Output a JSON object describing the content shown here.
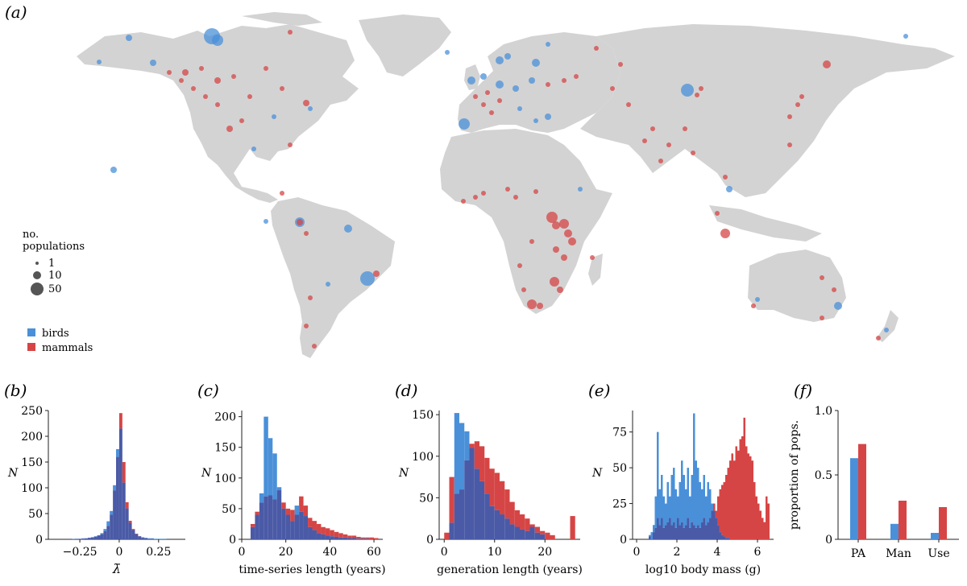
{
  "colors": {
    "birds": "#4a90d9",
    "mammals": "#d64545",
    "overlap": "#4a5aa6",
    "land": "#d3d3d3"
  },
  "map_panel": {
    "label": "(a)",
    "legend_size_title": "no.\npopulations",
    "legend_size_title_line1": "no.",
    "legend_size_title_line2": "populations",
    "legend_sizes": [
      "1",
      "10",
      "50"
    ],
    "legend_groups": [
      "birds",
      "mammals"
    ]
  },
  "chart_data": [
    {
      "panel": "(b)",
      "type": "bar",
      "xlabel": "λ̄",
      "ylabel": "N",
      "xlim": [
        -0.45,
        0.42
      ],
      "ylim": [
        0,
        250
      ],
      "xticks": [
        "-0.25",
        "0",
        "0.25"
      ],
      "xtick_values": [
        -0.25,
        0,
        0.25
      ],
      "yticks": [
        "0",
        "50",
        "100",
        "150",
        "200",
        "250"
      ],
      "ytick_values": [
        0,
        50,
        100,
        150,
        200,
        250
      ],
      "bin_width": 0.02,
      "bin_starts": [
        -0.3,
        -0.28,
        -0.26,
        -0.24,
        -0.22,
        -0.2,
        -0.18,
        -0.16,
        -0.14,
        -0.12,
        -0.1,
        -0.08,
        -0.06,
        -0.04,
        -0.02,
        0,
        0.02,
        0.04,
        0.06,
        0.08,
        0.1,
        0.12,
        0.14,
        0.16,
        0.18,
        0.2,
        0.22,
        0.24,
        0.26,
        0.28
      ],
      "series": [
        {
          "name": "birds",
          "values": [
            1,
            1,
            1,
            2,
            2,
            3,
            4,
            6,
            8,
            12,
            20,
            35,
            55,
            105,
            175,
            215,
            110,
            60,
            32,
            18,
            10,
            6,
            4,
            3,
            2,
            2,
            1,
            1,
            1,
            1
          ]
        },
        {
          "name": "mammals",
          "values": [
            0,
            1,
            1,
            1,
            2,
            3,
            4,
            5,
            7,
            10,
            16,
            26,
            48,
            95,
            160,
            245,
            150,
            72,
            36,
            20,
            11,
            6,
            3,
            2,
            1,
            1,
            0,
            0,
            0,
            0
          ]
        }
      ]
    },
    {
      "panel": "(c)",
      "type": "bar",
      "xlabel": "time-series length (years)",
      "ylabel": "N",
      "xlim": [
        0,
        64
      ],
      "ylim": [
        0,
        210
      ],
      "xticks": [
        "0",
        "20",
        "40",
        "60"
      ],
      "xtick_values": [
        0,
        20,
        40,
        60
      ],
      "yticks": [
        "0",
        "50",
        "100",
        "150",
        "200"
      ],
      "ytick_values": [
        0,
        50,
        100,
        150,
        200
      ],
      "bin_width": 2,
      "bin_starts": [
        4,
        6,
        8,
        10,
        12,
        14,
        16,
        18,
        20,
        22,
        24,
        26,
        28,
        30,
        32,
        34,
        36,
        38,
        40,
        42,
        44,
        46,
        48,
        50,
        52,
        54,
        56,
        58,
        60
      ],
      "series": [
        {
          "name": "birds",
          "values": [
            20,
            40,
            75,
            200,
            165,
            140,
            85,
            50,
            40,
            30,
            55,
            45,
            38,
            20,
            15,
            10,
            8,
            6,
            5,
            4,
            3,
            3,
            2,
            2,
            1,
            1,
            1,
            0,
            0
          ]
        },
        {
          "name": "mammals",
          "values": [
            25,
            45,
            60,
            70,
            72,
            65,
            80,
            60,
            50,
            48,
            40,
            70,
            55,
            35,
            30,
            25,
            20,
            18,
            15,
            12,
            10,
            8,
            6,
            6,
            4,
            3,
            3,
            3,
            2
          ]
        }
      ]
    },
    {
      "panel": "(d)",
      "type": "bar",
      "xlabel": "generation length (years)",
      "ylabel": "N",
      "xlim": [
        -1,
        27
      ],
      "ylim": [
        0,
        155
      ],
      "xticks": [
        "0",
        "10",
        "20"
      ],
      "xtick_values": [
        0,
        10,
        20
      ],
      "yticks": [
        "0",
        "50",
        "100",
        "150"
      ],
      "ytick_values": [
        0,
        50,
        100,
        150
      ],
      "bin_width": 1,
      "bin_starts": [
        0,
        1,
        2,
        3,
        4,
        5,
        6,
        7,
        8,
        9,
        10,
        11,
        12,
        13,
        14,
        15,
        16,
        17,
        18,
        19,
        20,
        21,
        22,
        23,
        24,
        25
      ],
      "series": [
        {
          "name": "birds",
          "values": [
            0,
            20,
            152,
            140,
            130,
            110,
            85,
            70,
            55,
            40,
            35,
            30,
            25,
            18,
            15,
            12,
            10,
            15,
            8,
            6,
            0,
            0,
            0,
            0,
            0,
            0
          ]
        },
        {
          "name": "mammals",
          "values": [
            8,
            75,
            55,
            60,
            95,
            115,
            118,
            112,
            98,
            85,
            80,
            70,
            60,
            45,
            35,
            30,
            25,
            18,
            15,
            10,
            8,
            5,
            0,
            0,
            0,
            28
          ]
        }
      ]
    },
    {
      "panel": "(e)",
      "type": "bar",
      "xlabel": "log10 body mass (g)",
      "ylabel": "N",
      "xlim": [
        -0.2,
        6.8
      ],
      "ylim": [
        0,
        90
      ],
      "xticks": [
        "0",
        "2",
        "4",
        "6"
      ],
      "xtick_values": [
        0,
        2,
        4,
        6
      ],
      "yticks": [
        "0",
        "25",
        "50",
        "75"
      ],
      "ytick_values": [
        0,
        25,
        50,
        75
      ],
      "bin_width": 0.1,
      "bin_starts": [
        0.6,
        0.7,
        0.8,
        0.9,
        1.0,
        1.1,
        1.2,
        1.3,
        1.4,
        1.5,
        1.6,
        1.7,
        1.8,
        1.9,
        2.0,
        2.1,
        2.2,
        2.3,
        2.4,
        2.5,
        2.6,
        2.7,
        2.8,
        2.9,
        3.0,
        3.1,
        3.2,
        3.3,
        3.4,
        3.5,
        3.6,
        3.7,
        3.8,
        3.9,
        4.0,
        4.1,
        4.2,
        4.3,
        4.4,
        4.5,
        4.6,
        4.7,
        4.8,
        4.9,
        5.0,
        5.1,
        5.2,
        5.3,
        5.4,
        5.5,
        5.6,
        5.7,
        5.8,
        5.9,
        6.0,
        6.1,
        6.2,
        6.3,
        6.4,
        6.5
      ],
      "series": [
        {
          "name": "birds",
          "values": [
            3,
            5,
            10,
            30,
            75,
            35,
            45,
            30,
            25,
            40,
            30,
            45,
            50,
            35,
            30,
            40,
            55,
            45,
            35,
            50,
            30,
            45,
            88,
            55,
            50,
            40,
            35,
            45,
            30,
            40,
            35,
            25,
            20,
            15,
            10,
            5,
            3,
            2,
            1,
            1,
            0,
            0,
            0,
            0,
            0,
            0,
            0,
            0,
            0,
            0,
            0,
            0,
            0,
            0,
            0,
            0,
            0,
            0,
            0,
            0
          ]
        },
        {
          "name": "mammals",
          "values": [
            2,
            0,
            5,
            8,
            15,
            10,
            15,
            8,
            10,
            12,
            15,
            10,
            12,
            8,
            15,
            10,
            12,
            8,
            10,
            15,
            8,
            12,
            10,
            8,
            10,
            8,
            12,
            15,
            10,
            12,
            15,
            20,
            25,
            20,
            30,
            35,
            38,
            40,
            45,
            50,
            55,
            60,
            55,
            65,
            62,
            70,
            72,
            85,
            65,
            60,
            58,
            55,
            40,
            30,
            25,
            20,
            15,
            12,
            30,
            25
          ]
        }
      ]
    },
    {
      "panel": "(f)",
      "type": "bar",
      "xlabel": "",
      "ylabel": "proportion of pops.",
      "categories": [
        "PA",
        "Man",
        "Use"
      ],
      "ylim": [
        0,
        1.0
      ],
      "yticks": [
        "0",
        "0.5",
        "1.0"
      ],
      "ytick_values": [
        0,
        0.5,
        1.0
      ],
      "series": [
        {
          "name": "birds",
          "values": [
            0.63,
            0.12,
            0.05
          ]
        },
        {
          "name": "mammals",
          "values": [
            0.74,
            0.3,
            0.25
          ]
        }
      ]
    }
  ]
}
